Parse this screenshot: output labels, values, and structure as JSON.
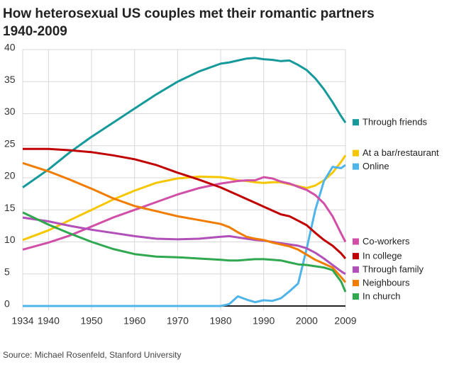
{
  "chart_data": {
    "type": "line",
    "title_lines": [
      "How heterosexual US couples met their romantic partners",
      "1940-2009"
    ],
    "source": "Source: Michael Rosenfeld, Stanford University",
    "x": [
      1934,
      1940,
      1945,
      1950,
      1955,
      1960,
      1965,
      1970,
      1975,
      1980,
      1982,
      1984,
      1986,
      1988,
      1990,
      1992,
      1994,
      1996,
      1998,
      2000,
      2002,
      2004,
      2006,
      2008,
      2009
    ],
    "xlim": [
      1934,
      2009
    ],
    "xticks": [
      1934,
      1940,
      1950,
      1960,
      1970,
      1980,
      1990,
      2000,
      2009
    ],
    "ylim": [
      0,
      40
    ],
    "yticks": [
      0,
      5,
      10,
      15,
      20,
      25,
      30,
      35,
      40
    ],
    "grid": true,
    "series": [
      {
        "name": "Through friends",
        "color": "#16999a",
        "values": [
          18.5,
          21.3,
          24,
          26.4,
          28.6,
          30.8,
          33,
          35,
          36.6,
          37.8,
          38,
          38.3,
          38.6,
          38.7,
          38.5,
          38.4,
          38.2,
          38.3,
          37.6,
          36.8,
          35.5,
          33.8,
          31.8,
          29.6,
          28.6
        ]
      },
      {
        "name": "At a bar/restaurant",
        "color": "#f6c700",
        "values": [
          10.3,
          11.8,
          13.4,
          15,
          16.6,
          18,
          19.2,
          19.9,
          20.2,
          20.1,
          19.9,
          19.6,
          19.5,
          19.3,
          19.2,
          19.3,
          19.3,
          19,
          18.7,
          18.4,
          18.8,
          19.6,
          20.8,
          22.5,
          23.5
        ]
      },
      {
        "name": "Online",
        "color": "#4fb4ea",
        "values": [
          0,
          0,
          0,
          0,
          0,
          0,
          0,
          0,
          0,
          0,
          0.3,
          1.5,
          1,
          0.6,
          0.9,
          0.8,
          1.2,
          2.3,
          3.5,
          9,
          15,
          19.5,
          21.7,
          21.5,
          22
        ]
      },
      {
        "name": "Co-workers",
        "color": "#d14fa6",
        "values": [
          8.8,
          9.9,
          11,
          12.4,
          13.8,
          15,
          16.2,
          17.4,
          18.4,
          19.1,
          19.3,
          19.5,
          19.6,
          19.6,
          20.1,
          19.9,
          19.4,
          19.1,
          18.6,
          18.1,
          17.3,
          16,
          14,
          11.3,
          10
        ]
      },
      {
        "name": "In college",
        "color": "#c00000",
        "values": [
          24.5,
          24.5,
          24.3,
          24,
          23.5,
          22.9,
          22,
          20.8,
          19.7,
          18.5,
          17.9,
          17.3,
          16.7,
          16.1,
          15.5,
          14.9,
          14.3,
          14,
          13.3,
          12.6,
          11.4,
          10.3,
          9.4,
          8.2,
          7.4
        ]
      },
      {
        "name": "Through family",
        "color": "#b150b8",
        "values": [
          13.8,
          13.2,
          12.5,
          11.9,
          11.4,
          10.9,
          10.5,
          10.4,
          10.5,
          10.8,
          10.9,
          10.7,
          10.5,
          10.3,
          10.2,
          10,
          9.8,
          9.6,
          9.4,
          9,
          8.3,
          7.4,
          6.4,
          5.4,
          5
        ]
      },
      {
        "name": "Neighbours",
        "color": "#f07d00",
        "values": [
          22.3,
          21,
          19.7,
          18.3,
          16.8,
          15.6,
          14.8,
          14,
          13.4,
          12.8,
          12.3,
          11.5,
          10.8,
          10.5,
          10.3,
          9.9,
          9.6,
          9.3,
          8.8,
          8,
          7.2,
          6.6,
          6,
          4.5,
          3.7
        ]
      },
      {
        "name": "In church",
        "color": "#2fa84f",
        "values": [
          14.6,
          12.7,
          11.3,
          10,
          8.9,
          8.1,
          7.7,
          7.6,
          7.4,
          7.2,
          7.1,
          7.1,
          7.2,
          7.3,
          7.3,
          7.2,
          7.1,
          6.8,
          6.5,
          6.4,
          6.2,
          6,
          5.6,
          3.8,
          2.2
        ]
      }
    ]
  }
}
